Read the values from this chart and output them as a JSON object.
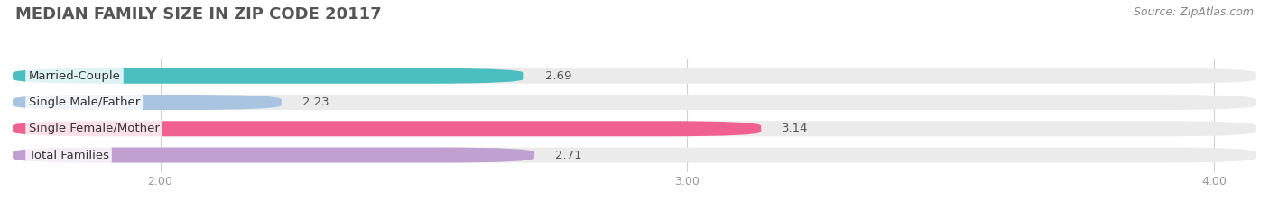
{
  "title": "MEDIAN FAMILY SIZE IN ZIP CODE 20117",
  "source_text": "Source: ZipAtlas.com",
  "categories": [
    "Married-Couple",
    "Single Male/Father",
    "Single Female/Mother",
    "Total Families"
  ],
  "values": [
    2.69,
    2.23,
    3.14,
    2.71
  ],
  "bar_colors": [
    "#4bbfbf",
    "#a8c4e0",
    "#f06090",
    "#c0a0d0"
  ],
  "background_color": "#ffffff",
  "bar_bg_color": "#ebebeb",
  "xlim": [
    1.72,
    4.08
  ],
  "xticks": [
    2.0,
    3.0,
    4.0
  ],
  "xtick_labels": [
    "2.00",
    "3.00",
    "4.00"
  ],
  "bar_height": 0.58,
  "label_fontsize": 9.5,
  "value_fontsize": 9.5,
  "title_fontsize": 13,
  "source_fontsize": 9,
  "rounding_size": 0.18
}
